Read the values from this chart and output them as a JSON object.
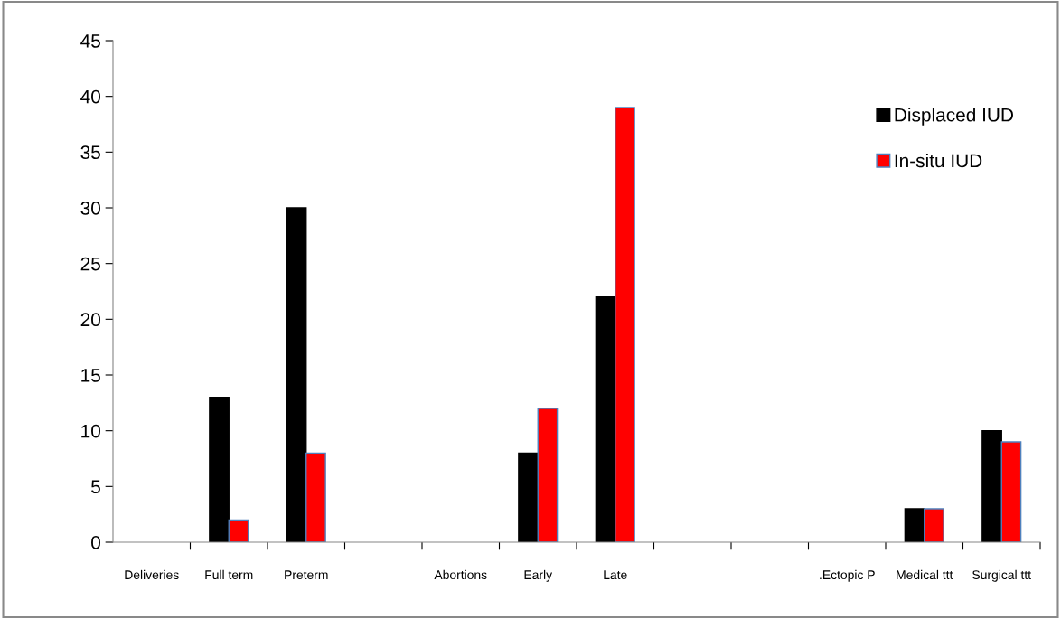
{
  "chart_data": {
    "type": "bar",
    "categories": [
      "Deliveries",
      "Full term",
      "Preterm",
      null,
      "Abortions",
      "Early",
      "Late",
      null,
      null,
      ".Ectopic P",
      "Medical ttt",
      "Surgical ttt"
    ],
    "series": [
      {
        "name": "Displaced IUD",
        "color": "#000000",
        "values": [
          null,
          13,
          30,
          null,
          null,
          8,
          22,
          null,
          null,
          null,
          3,
          10
        ]
      },
      {
        "name": "In-situ IUD",
        "color": "#ff0000",
        "values": [
          null,
          2,
          8,
          null,
          null,
          12,
          39,
          null,
          null,
          null,
          3,
          9
        ]
      }
    ],
    "ylim": [
      0,
      45
    ],
    "yticks": [
      0,
      5,
      10,
      15,
      20,
      25,
      30,
      35,
      40,
      45
    ],
    "grid": false,
    "legend": "top right"
  }
}
